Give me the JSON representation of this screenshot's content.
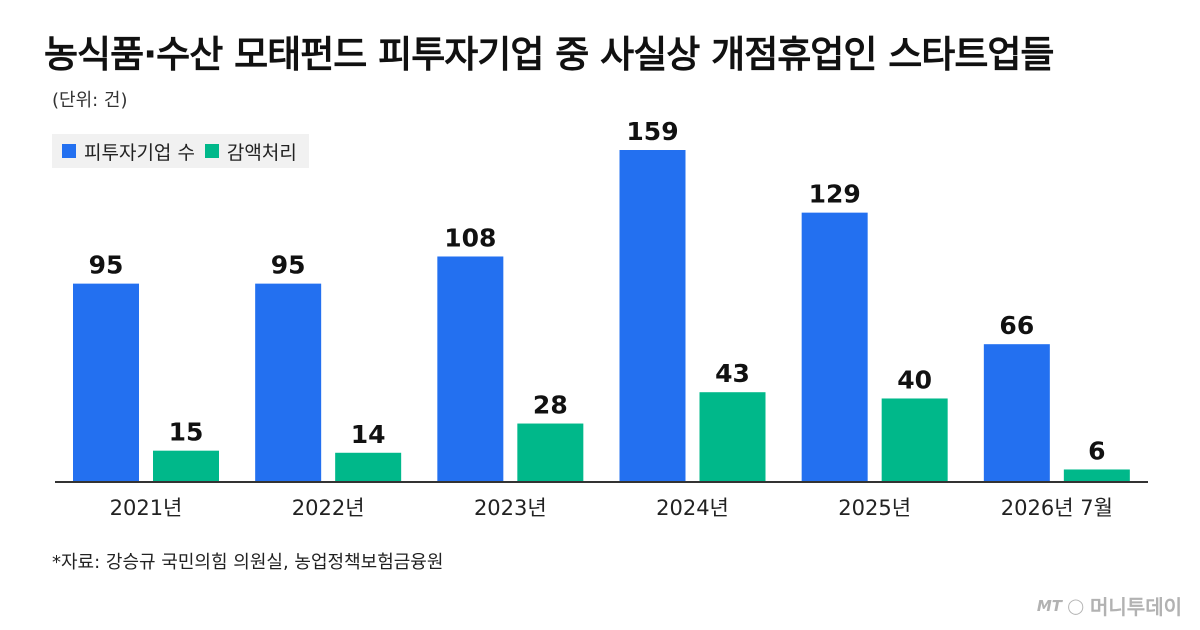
{
  "title": "농식품·수산 모태펀드 피투자기업 중 사실상 개점휴업인 스타트업들",
  "unit": "(단위: 건)",
  "source": "*자료: 강승규 국민의힘 의원실, 농업정책보험금융원",
  "watermark": {
    "mark": "MT ◯",
    "text": "머니투데이"
  },
  "colors": {
    "invested": "#2370f0",
    "impaired": "#00b88a",
    "axis": "#333333"
  },
  "chart_data": {
    "type": "bar",
    "categories": [
      "2021년",
      "2022년",
      "2023년",
      "2024년",
      "2025년",
      "2026년 7월"
    ],
    "series": [
      {
        "name": "피투자기업 수",
        "values": [
          95,
          95,
          108,
          159,
          129,
          66
        ]
      },
      {
        "name": "감액처리",
        "values": [
          15,
          14,
          28,
          43,
          40,
          6
        ]
      }
    ],
    "ylim": [
      0,
      170
    ],
    "grid": false,
    "legend": "top-left",
    "data_labels": true
  }
}
